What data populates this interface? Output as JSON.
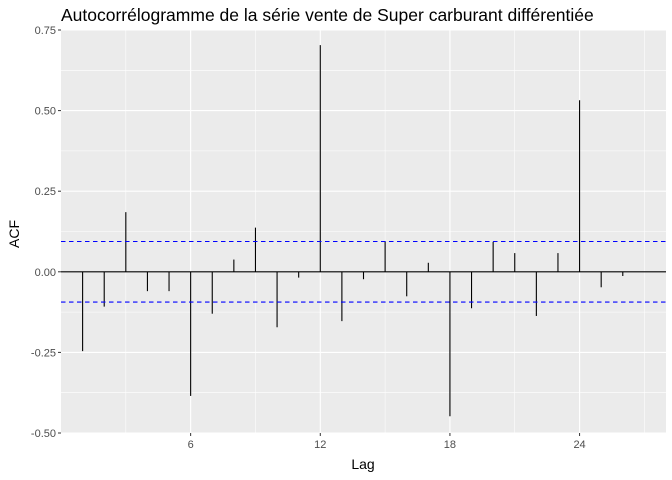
{
  "chart_data": {
    "type": "bar",
    "title": "Autocorrélogramme de la série vente de Super carburant différentiée",
    "xlabel": "Lag",
    "ylabel": "ACF",
    "xlim": [
      0,
      28
    ],
    "ylim": [
      -0.5,
      0.75
    ],
    "x_ticks": [
      6,
      12,
      18,
      24
    ],
    "y_ticks": [
      -0.5,
      -0.25,
      0.0,
      0.25,
      0.5,
      0.75
    ],
    "y_tick_labels": [
      "-0.50",
      "-0.25",
      "0.00",
      "0.25",
      "0.50",
      "0.75"
    ],
    "lags": [
      1,
      2,
      3,
      4,
      5,
      6,
      7,
      8,
      9,
      10,
      11,
      12,
      13,
      14,
      15,
      16,
      17,
      18,
      19,
      20,
      21,
      22,
      23,
      24,
      25,
      26
    ],
    "values": [
      -0.246,
      -0.108,
      0.185,
      -0.06,
      -0.06,
      -0.385,
      -0.13,
      0.038,
      0.137,
      -0.172,
      -0.018,
      0.703,
      -0.153,
      -0.023,
      0.095,
      -0.076,
      0.028,
      -0.448,
      -0.113,
      0.093,
      0.058,
      -0.137,
      0.058,
      0.532,
      -0.048,
      -0.013
    ],
    "confidence_bound": 0.094,
    "grid": true,
    "colors": {
      "panel": "#ebebeb",
      "gridline": "#ffffff",
      "bars": "#000000",
      "confidence_lines": "#0000ff"
    }
  }
}
